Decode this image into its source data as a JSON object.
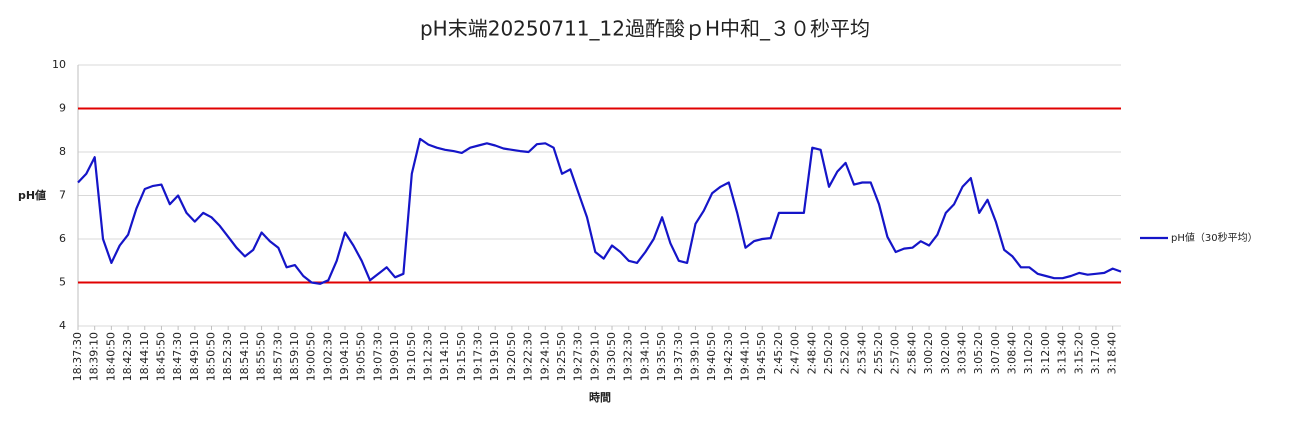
{
  "chart_data": {
    "type": "line",
    "title": "pH末端20250711_12過酢酸ｐH中和_３０秒平均",
    "x_label": "時間",
    "y_label": "pH値",
    "categories": [
      "18:37:30",
      null,
      "18:39:10",
      null,
      "18:40:50",
      null,
      "18:42:30",
      null,
      "18:44:10",
      null,
      "18:45:50",
      null,
      "18:47:30",
      null,
      "18:49:10",
      null,
      "18:50:50",
      null,
      "18:52:30",
      null,
      "18:54:10",
      null,
      "18:55:50",
      null,
      "18:57:30",
      null,
      "18:59:10",
      null,
      "19:00:50",
      null,
      "19:02:30",
      null,
      "19:04:10",
      null,
      "19:05:50",
      null,
      "19:07:30",
      null,
      "19:09:10",
      null,
      "19:10:50",
      null,
      "19:12:30",
      null,
      "19:14:10",
      null,
      "19:15:50",
      null,
      "19:17:30",
      null,
      "19:19:10",
      null,
      "19:20:50",
      null,
      "19:22:30",
      null,
      "19:24:10",
      null,
      "19:25:50",
      null,
      "19:27:30",
      null,
      "19:29:10",
      null,
      "19:30:50",
      null,
      "19:32:30",
      null,
      "19:34:10",
      null,
      "19:35:50",
      null,
      "19:37:30",
      null,
      "19:39:10",
      null,
      "19:40:50",
      null,
      "19:42:30",
      null,
      "19:44:10",
      null,
      "19:45:50",
      null,
      "2:45:20",
      null,
      "2:47:00",
      null,
      "2:48:40",
      null,
      "2:50:20",
      null,
      "2:52:00",
      null,
      "2:53:40",
      null,
      "2:55:20",
      null,
      "2:57:00",
      null,
      "2:58:40",
      null,
      "3:00:20",
      null,
      "3:02:00",
      null,
      "3:03:40",
      null,
      "3:05:20",
      null,
      "3:07:00",
      null,
      "3:08:40",
      null,
      "3:10:20",
      null,
      "3:12:00",
      null,
      "3:13:40",
      null,
      "3:15:20",
      null,
      "3:17:00",
      null,
      "3:18:40",
      null
    ],
    "series": [
      {
        "name": "pH値（30秒平均）",
        "color": "#1515c8",
        "values": [
          7.3,
          7.5,
          7.88,
          6.0,
          5.45,
          5.85,
          6.1,
          6.7,
          7.15,
          7.22,
          7.25,
          6.8,
          7.0,
          6.6,
          6.4,
          6.6,
          6.5,
          6.3,
          6.05,
          5.8,
          5.6,
          5.75,
          6.15,
          5.95,
          5.8,
          5.35,
          5.4,
          5.15,
          5.0,
          4.97,
          5.05,
          5.5,
          6.15,
          5.85,
          5.5,
          5.05,
          5.2,
          5.35,
          5.12,
          5.2,
          7.5,
          8.3,
          8.17,
          8.1,
          8.05,
          8.02,
          7.98,
          8.1,
          8.15,
          8.2,
          8.15,
          8.08,
          8.05,
          8.02,
          8.0,
          8.18,
          8.2,
          8.1,
          7.5,
          7.6,
          7.05,
          6.5,
          5.7,
          5.55,
          5.85,
          5.7,
          5.5,
          5.45,
          5.7,
          6.0,
          6.5,
          5.9,
          5.5,
          5.45,
          6.35,
          6.65,
          7.05,
          7.2,
          7.3,
          6.6,
          5.8,
          5.95,
          6.0,
          6.02,
          6.6,
          6.6,
          6.6,
          6.6,
          8.1,
          8.05,
          7.2,
          7.55,
          7.75,
          7.25,
          7.3,
          7.3,
          6.8,
          6.05,
          5.7,
          5.78,
          5.8,
          5.95,
          5.85,
          6.1,
          6.6,
          6.8,
          7.2,
          7.4,
          6.6,
          6.9,
          6.4,
          5.75,
          5.6,
          5.35,
          5.35,
          5.2,
          5.15,
          5.1,
          5.1,
          5.15,
          5.22,
          5.18,
          5.2,
          5.22,
          5.32,
          5.25
        ]
      }
    ],
    "ylim": [
      4,
      10
    ],
    "yticks": [
      4,
      5,
      6,
      7,
      8,
      9,
      10
    ],
    "grid": true,
    "reference_lines": [
      {
        "value": 5,
        "color": "#e00000"
      },
      {
        "value": 9,
        "color": "#e00000"
      }
    ],
    "legend": "right"
  }
}
